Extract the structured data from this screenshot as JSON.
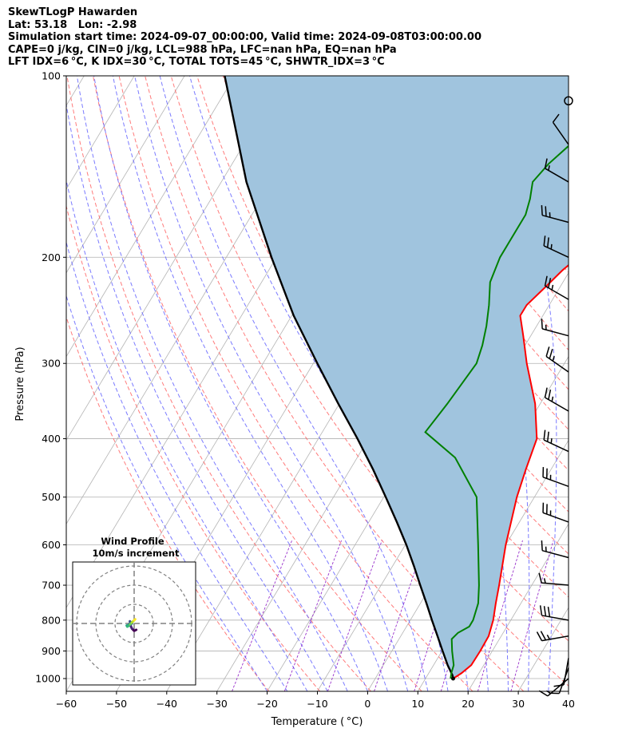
{
  "title": {
    "line1": "SkewTLogP Hawarden",
    "line2": "Lat: 53.18   Lon: -2.98",
    "line3": "Simulation start time: 2024-09-07_00:00:00, Valid time: 2024-09-08T03:00:00.00",
    "line4": "CAPE=0 j/kg, CIN=0 j/kg, LCL=988 hPa, LFC=nan hPa, EQ=nan hPa",
    "line5": "LFT IDX=6 °C, K IDX=30 °C, TOTAL TOTS=45 °C, SHWTR_IDX=3 °C"
  },
  "colors": {
    "temperature": "#ff0000",
    "dewpoint": "#008000",
    "parcel": "#000000",
    "cape_fill": "#a0c4de",
    "dry_adiabat": "#ff6464",
    "moist_adiabat": "#6464ff",
    "mixing_ratio": "#9932cc",
    "isotherm": "#b4b4b4",
    "grid": "#b0b0b0"
  },
  "chart_data": {
    "type": "skewt-logp",
    "xlabel": "Temperature ( °C)",
    "ylabel": "Pressure (hPa)",
    "xlim": [
      -60,
      40
    ],
    "ylim": [
      1050,
      100
    ],
    "log_y": true,
    "grid": true,
    "x_ticks": [
      "−60",
      "−50",
      "−40",
      "−30",
      "−20",
      "−10",
      "0",
      "10",
      "20",
      "30",
      "40"
    ],
    "x_tick_values": [
      -60,
      -50,
      -40,
      -30,
      -20,
      -10,
      0,
      10,
      20,
      30,
      40
    ],
    "y_ticks": [
      "1000",
      "900",
      "800",
      "700",
      "600",
      "500",
      "400",
      "300",
      "200",
      "100"
    ],
    "y_tick_values": [
      1000,
      900,
      800,
      700,
      600,
      500,
      400,
      300,
      200,
      100
    ],
    "temperature": [
      [
        1000,
        15.5
      ],
      [
        980,
        16.5
      ],
      [
        950,
        17.5
      ],
      [
        900,
        17.6
      ],
      [
        850,
        17.5
      ],
      [
        800,
        16.5
      ],
      [
        750,
        15.0
      ],
      [
        700,
        13.5
      ],
      [
        600,
        10.0
      ],
      [
        500,
        6.5
      ],
      [
        450,
        5.0
      ],
      [
        400,
        3.5
      ],
      [
        350,
        -1.0
      ],
      [
        300,
        -7.5
      ],
      [
        270,
        -11.5
      ],
      [
        250,
        -14.5
      ],
      [
        240,
        -14.5
      ],
      [
        225,
        -13.0
      ],
      [
        210,
        -11.5
      ],
      [
        200,
        -10.0
      ],
      [
        180,
        -7.5
      ],
      [
        165,
        -5.5
      ],
      [
        150,
        -3.5
      ],
      [
        140,
        -2.5
      ],
      [
        130,
        -2.0
      ],
      [
        120,
        -1.5
      ],
      [
        110,
        0.0
      ],
      [
        100,
        1.5
      ]
    ],
    "dewpoint": [
      [
        1000,
        15.0
      ],
      [
        980,
        14.5
      ],
      [
        950,
        14.0
      ],
      [
        900,
        12.0
      ],
      [
        860,
        10.5
      ],
      [
        840,
        11.0
      ],
      [
        820,
        12.5
      ],
      [
        800,
        12.5
      ],
      [
        750,
        11.5
      ],
      [
        700,
        9.5
      ],
      [
        600,
        4.5
      ],
      [
        500,
        -1.5
      ],
      [
        430,
        -10.5
      ],
      [
        390,
        -19.5
      ],
      [
        350,
        -18.5
      ],
      [
        300,
        -17.5
      ],
      [
        280,
        -18.5
      ],
      [
        260,
        -20.0
      ],
      [
        240,
        -22.0
      ],
      [
        220,
        -24.5
      ],
      [
        200,
        -25.5
      ],
      [
        190,
        -25.5
      ],
      [
        170,
        -25.5
      ],
      [
        160,
        -26.5
      ],
      [
        150,
        -28.0
      ],
      [
        140,
        -27.0
      ],
      [
        130,
        -25.0
      ],
      [
        120,
        -23.0
      ],
      [
        110,
        -21.0
      ],
      [
        100,
        -18.5
      ]
    ],
    "parcel": [
      [
        1000,
        15.5
      ],
      [
        988,
        15.0
      ],
      [
        950,
        12.8
      ],
      [
        900,
        10.1
      ],
      [
        850,
        7.3
      ],
      [
        800,
        4.3
      ],
      [
        750,
        1.2
      ],
      [
        700,
        -2.2
      ],
      [
        650,
        -5.8
      ],
      [
        600,
        -9.8
      ],
      [
        550,
        -14.4
      ],
      [
        500,
        -19.6
      ],
      [
        450,
        -25.4
      ],
      [
        400,
        -32.2
      ],
      [
        350,
        -40.2
      ],
      [
        300,
        -49.2
      ],
      [
        250,
        -59.6
      ],
      [
        200,
        -71.0
      ],
      [
        150,
        -85.0
      ],
      [
        100,
        -102.0
      ]
    ],
    "wind_barbs": [
      {
        "p": 1000,
        "speed_kt": 15,
        "dir_deg": 230
      },
      {
        "p": 960,
        "speed_kt": 10,
        "dir_deg": 200
      },
      {
        "p": 925,
        "speed_kt": 10,
        "dir_deg": 190
      },
      {
        "p": 850,
        "speed_kt": 25,
        "dir_deg": 260
      },
      {
        "p": 800,
        "speed_kt": 30,
        "dir_deg": 280
      },
      {
        "p": 700,
        "speed_kt": 15,
        "dir_deg": 275
      },
      {
        "p": 630,
        "speed_kt": 15,
        "dir_deg": 285
      },
      {
        "p": 550,
        "speed_kt": 25,
        "dir_deg": 290
      },
      {
        "p": 480,
        "speed_kt": 25,
        "dir_deg": 290
      },
      {
        "p": 420,
        "speed_kt": 25,
        "dir_deg": 295
      },
      {
        "p": 360,
        "speed_kt": 25,
        "dir_deg": 300
      },
      {
        "p": 310,
        "speed_kt": 25,
        "dir_deg": 305
      },
      {
        "p": 270,
        "speed_kt": 15,
        "dir_deg": 285
      },
      {
        "p": 235,
        "speed_kt": 25,
        "dir_deg": 300
      },
      {
        "p": 200,
        "speed_kt": 25,
        "dir_deg": 295
      },
      {
        "p": 175,
        "speed_kt": 25,
        "dir_deg": 285
      },
      {
        "p": 150,
        "speed_kt": 15,
        "dir_deg": 300
      },
      {
        "p": 130,
        "speed_kt": 10,
        "dir_deg": 325
      },
      {
        "p": 110,
        "speed_kt": 0,
        "dir_deg": 0,
        "calm": true
      }
    ],
    "inset": {
      "title_line1": "Wind Profile",
      "title_line2": "10m/s increment",
      "rings_ms": [
        10,
        20,
        30
      ],
      "hodograph_uv": [
        [
          2,
          -6
        ],
        [
          0,
          -7
        ],
        [
          -2,
          -5
        ],
        [
          -3,
          -3
        ],
        [
          -3.5,
          -1
        ],
        [
          -4,
          2
        ],
        [
          -3,
          1
        ],
        [
          -2,
          0
        ],
        [
          -5,
          -1
        ],
        [
          -6,
          -2
        ],
        [
          -7,
          -2
        ],
        [
          -6.5,
          -3
        ],
        [
          -5,
          -2
        ],
        [
          -4,
          -1
        ],
        [
          -3,
          0
        ],
        [
          -2,
          1
        ],
        [
          -1,
          2
        ],
        [
          0,
          3
        ],
        [
          1,
          4
        ]
      ]
    }
  }
}
